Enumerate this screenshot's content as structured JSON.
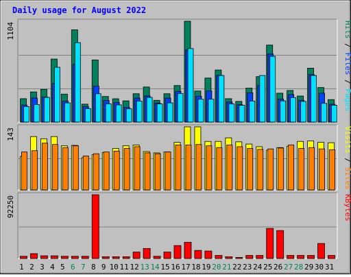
{
  "chart_data": {
    "type": "bar",
    "title": "Daily usage for August 2022",
    "categories": [
      "1",
      "2",
      "3",
      "4",
      "5",
      "6",
      "7",
      "8",
      "9",
      "10",
      "11",
      "12",
      "13",
      "14",
      "15",
      "16",
      "17",
      "18",
      "19",
      "20",
      "21",
      "22",
      "23",
      "24",
      "25",
      "26",
      "27",
      "28",
      "29",
      "30",
      "31"
    ],
    "weekend_days": [
      "6",
      "7",
      "13",
      "14",
      "20",
      "21",
      "27",
      "28"
    ],
    "panels": [
      {
        "id": "hits-files-pages",
        "ymax_label": "1104",
        "ylim": [
          0,
          1104
        ],
        "side_labels": [
          {
            "text": "Pages",
            "color": "#00E0FF"
          },
          {
            "text": " / ",
            "color": "#000000"
          },
          {
            "text": "Files",
            "color": "#0040FF"
          },
          {
            "text": " / ",
            "color": "#000000"
          },
          {
            "text": "Hits",
            "color": "#00805C"
          }
        ],
        "series": [
          {
            "name": "Hits",
            "color": "#00805C",
            "values": [
              256,
              330,
              358,
              690,
              306,
              1010,
              196,
              680,
              280,
              255,
              232,
              310,
              384,
              238,
              310,
              400,
              1104,
              340,
              482,
              570,
              256,
              226,
              372,
              498,
              843,
              316,
              346,
              285,
              590,
              378,
              246
            ]
          },
          {
            "name": "Files",
            "color": "#0040FF",
            "values": [
              186,
              263,
              275,
              422,
              230,
              632,
              168,
              394,
              236,
              215,
              162,
              262,
              286,
              208,
              262,
              336,
              790,
              283,
              340,
              512,
              219,
              190,
              320,
              400,
              745,
              251,
              301,
              238,
              519,
              316,
              195
            ]
          },
          {
            "name": "Pages",
            "color": "#00E0FF",
            "values": [
              170,
              192,
              270,
              600,
              210,
              870,
              148,
              310,
              200,
              188,
              145,
              230,
              270,
              198,
              210,
              312,
              805,
              250,
              250,
              510,
              198,
              183,
              230,
              510,
              720,
              232,
              268,
              226,
              510,
              205,
              184
            ]
          }
        ]
      },
      {
        "id": "visits-sites",
        "ymax_label": "143",
        "ylim": [
          0,
          143
        ],
        "side_labels": [
          {
            "text": "Sites",
            "color": "#FF8000"
          },
          {
            "text": " / ",
            "color": "#000000"
          },
          {
            "text": "Visits",
            "color": "#FFFF00"
          }
        ],
        "series": [
          {
            "name": "Visits",
            "color": "#FFFF00",
            "values": [
              76,
              121,
              116,
              121,
              100,
              101,
              73,
              80,
              85,
              94,
              100,
              102,
              87,
              84,
              86,
              108,
              143,
              143,
              110,
              110,
              118,
              109,
              104,
              98,
              90,
              96,
              99,
              110,
              111,
              108,
              107
            ]
          },
          {
            "name": "Sites",
            "color": "#FF8000",
            "values": [
              86,
              89,
              106,
              103,
              96,
              100,
              77,
              82,
              86,
              88,
              94,
              98,
              84,
              82,
              86,
              102,
              102,
              103,
              100,
              96,
              102,
              98,
              94,
              92,
              93,
              95,
              102,
              94,
              96,
              93,
              91
            ]
          }
        ]
      },
      {
        "id": "kbytes",
        "ymax_label": "92250",
        "ylim": [
          0,
          92250
        ],
        "side_labels": [
          {
            "text": "KBytes",
            "color": "#FF0000"
          }
        ],
        "series": [
          {
            "name": "KBytes",
            "color": "#FF0000",
            "values": [
              3200,
              7000,
              3900,
              3900,
              3200,
              3200,
              3200,
              92250,
              2500,
              2500,
              2500,
              9300,
              14500,
              3200,
              9300,
              18700,
              23500,
              11700,
              10800,
              4400,
              2500,
              1500,
              4400,
              4400,
              43500,
              40500,
              4400,
              4400,
              4400,
              21700,
              4400
            ]
          }
        ]
      }
    ]
  },
  "colors": {
    "background": "#C0C0C0",
    "plot_background": "#C0C0C0",
    "grid": "#808080",
    "title": "#0000FF",
    "axis_weekday": "#000000",
    "axis_weekend": "#00805C"
  }
}
